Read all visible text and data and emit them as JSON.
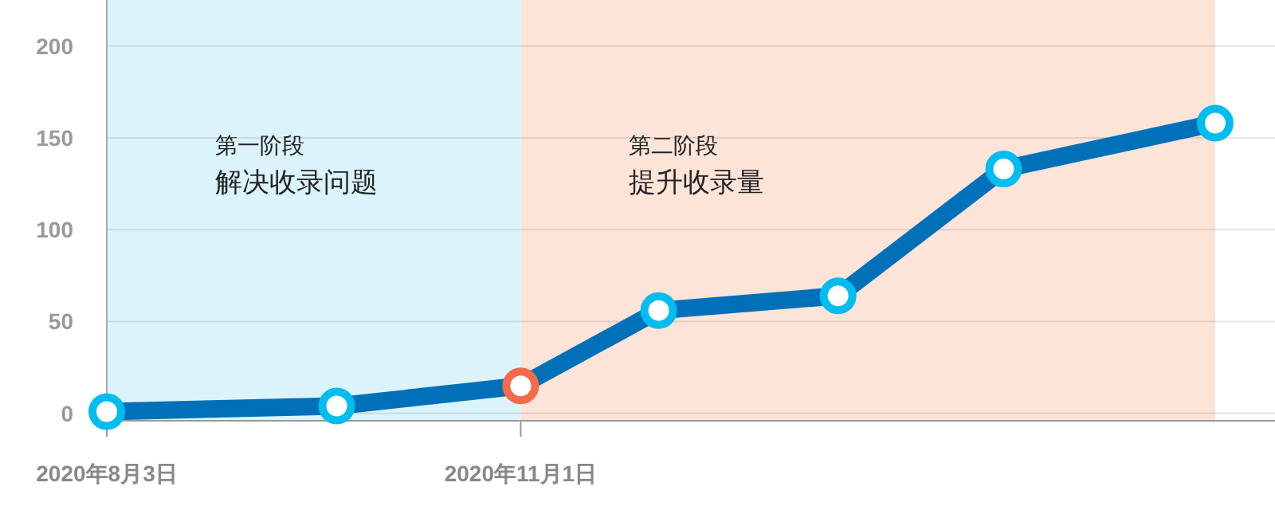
{
  "chart_data": {
    "type": "line",
    "x": [
      "2020-08-03",
      "2020-09-22",
      "2020-11-01",
      "2020-12-01",
      "2021-01-09",
      "2021-02-14",
      "2021-04-01"
    ],
    "series": [
      {
        "color": "#0070b8",
        "values": [
          1,
          4,
          15,
          56,
          64,
          133,
          158
        ],
        "colors": [
          "#00bcef",
          "#00bcef",
          "#f26b4a",
          "#00bcef",
          "#00bcef",
          "#00bcef",
          "#00bcef"
        ]
      }
    ],
    "xlim": [
      "2020-08-03",
      "2021-04-14"
    ],
    "xticks": [
      {
        "value": "2020-08-03",
        "label": "2020年8月3日"
      },
      {
        "value": "2020-11-01",
        "label": "2020年11月1日"
      }
    ],
    "ylim": [
      -4,
      225
    ],
    "yticks": [
      0,
      50,
      100,
      150,
      200
    ],
    "grid": "y",
    "marker": "circle",
    "line_style": "solid",
    "annotations": [
      "解决收录问题",
      "提升收录量"
    ],
    "bands": [
      {
        "axis": "x",
        "from": "2020-08-03",
        "to": "2020-11-01",
        "label": "第一阶段",
        "color": "#dbf4fb"
      },
      {
        "axis": "x",
        "from": "2020-11-01",
        "to": "2021-04-01",
        "label": "第二阶段",
        "color": "#fde4d9"
      }
    ]
  }
}
